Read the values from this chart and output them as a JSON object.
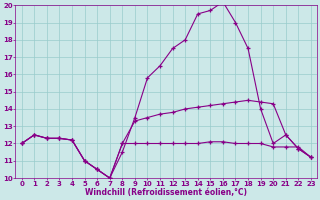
{
  "background_color": "#cce8e8",
  "line_color": "#880088",
  "grid_color": "#99cccc",
  "xlabel": "Windchill (Refroidissement éolien,°C)",
  "xlabel_color": "#880088",
  "xlim": [
    -0.5,
    23.5
  ],
  "ylim": [
    10,
    20
  ],
  "yticks": [
    10,
    11,
    12,
    13,
    14,
    15,
    16,
    17,
    18,
    19,
    20
  ],
  "xticks": [
    0,
    1,
    2,
    3,
    4,
    5,
    6,
    7,
    8,
    9,
    10,
    11,
    12,
    13,
    14,
    15,
    16,
    17,
    18,
    19,
    20,
    21,
    22,
    23
  ],
  "series": [
    {
      "x": [
        0,
        1,
        2,
        3,
        4,
        5,
        6,
        7,
        8,
        9,
        10,
        11,
        12,
        13,
        14,
        15,
        16,
        17,
        18,
        19,
        20,
        21,
        22,
        23
      ],
      "y": [
        12.0,
        12.5,
        12.3,
        12.3,
        12.2,
        11.0,
        10.5,
        10.0,
        12.0,
        12.0,
        12.0,
        12.0,
        12.0,
        12.0,
        12.0,
        12.1,
        12.1,
        12.0,
        12.0,
        12.0,
        11.8,
        11.8,
        11.8,
        11.2
      ]
    },
    {
      "x": [
        0,
        1,
        2,
        3,
        4,
        5,
        6,
        7,
        8,
        9,
        10,
        11,
        12,
        13,
        14,
        15,
        16,
        17,
        18,
        19,
        20,
        21,
        22,
        23
      ],
      "y": [
        12.0,
        12.5,
        12.3,
        12.3,
        12.2,
        11.0,
        10.5,
        10.0,
        12.0,
        13.3,
        13.5,
        13.7,
        13.8,
        14.0,
        14.1,
        14.2,
        14.3,
        14.4,
        14.5,
        14.4,
        14.3,
        12.5,
        11.7,
        11.2
      ]
    },
    {
      "x": [
        0,
        1,
        2,
        3,
        4,
        5,
        6,
        7,
        8,
        9,
        10,
        11,
        12,
        13,
        14,
        15,
        16,
        17,
        18,
        19,
        20,
        21,
        22,
        23
      ],
      "y": [
        12.0,
        12.5,
        12.3,
        12.3,
        12.2,
        11.0,
        10.5,
        10.0,
        11.5,
        13.5,
        15.8,
        16.5,
        17.5,
        18.0,
        19.5,
        19.7,
        20.2,
        19.0,
        17.5,
        14.0,
        12.0,
        12.5,
        11.7,
        11.2
      ]
    }
  ]
}
